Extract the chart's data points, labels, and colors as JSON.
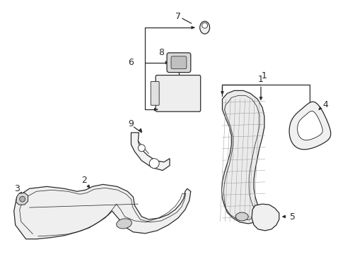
{
  "bg_color": "#ffffff",
  "line_color": "#2a2a2a",
  "figsize": [
    4.89,
    3.6
  ],
  "dpi": 100
}
